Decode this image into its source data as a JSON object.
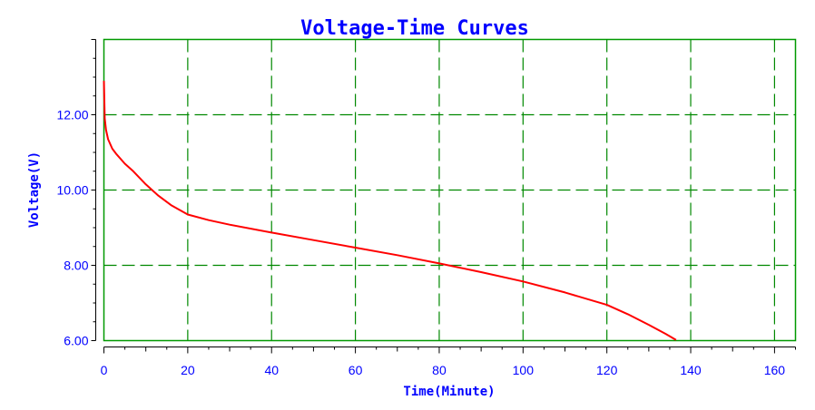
{
  "chart_data": {
    "type": "line",
    "title": "Voltage-Time Curves",
    "xlabel": "Time(Minute)",
    "ylabel": "Voltage(V)",
    "xlim": [
      0,
      165
    ],
    "ylim": [
      6.0,
      14.0
    ],
    "x_ticks": [
      0,
      20,
      40,
      60,
      80,
      100,
      120,
      140,
      160
    ],
    "x_tick_labels": [
      "0",
      "20",
      "40",
      "60",
      "80",
      "100",
      "120",
      "140",
      "160"
    ],
    "y_ticks": [
      6.0,
      8.0,
      10.0,
      12.0
    ],
    "y_tick_labels": [
      "6.00",
      "8.00",
      "10.00",
      "12.00"
    ],
    "grid": true,
    "legend": "none",
    "colors": {
      "title": "#0000ff",
      "tick_labels": "#0000ff",
      "axis_labels": "#0000ff",
      "plot_frame": "#009900",
      "grid": "#008800",
      "series": "#ff0000"
    },
    "series": [
      {
        "x": [
          0,
          0.2,
          0.5,
          1,
          2,
          3,
          5,
          7,
          10,
          13,
          16,
          20,
          25,
          30,
          40,
          50,
          60,
          70,
          80,
          90,
          100,
          110,
          120,
          125,
          130,
          134,
          136.5
        ],
        "y": [
          12.9,
          11.9,
          11.6,
          11.35,
          11.1,
          10.95,
          10.7,
          10.5,
          10.15,
          9.85,
          9.6,
          9.35,
          9.2,
          9.08,
          8.87,
          8.67,
          8.47,
          8.27,
          8.05,
          7.82,
          7.57,
          7.28,
          6.95,
          6.7,
          6.42,
          6.18,
          6.02
        ]
      }
    ]
  }
}
